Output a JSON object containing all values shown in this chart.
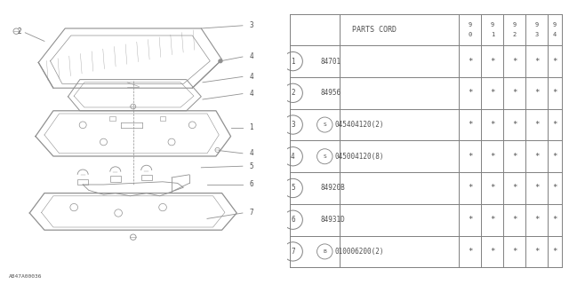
{
  "bg_color": "#ffffff",
  "diagram_label": "A847A00036",
  "table": {
    "rows": [
      {
        "num": "1",
        "code": "84701",
        "prefix": "",
        "stars": [
          "*",
          "*",
          "*",
          "*",
          "*"
        ]
      },
      {
        "num": "2",
        "code": "84956",
        "prefix": "",
        "stars": [
          "*",
          "*",
          "*",
          "*",
          "*"
        ]
      },
      {
        "num": "3",
        "code": "045404120(2)",
        "prefix": "S",
        "stars": [
          "*",
          "*",
          "*",
          "*",
          "*"
        ]
      },
      {
        "num": "4",
        "code": "045004120(8)",
        "prefix": "S",
        "stars": [
          "*",
          "*",
          "*",
          "*",
          "*"
        ]
      },
      {
        "num": "5",
        "code": "84920B",
        "prefix": "",
        "stars": [
          "*",
          "*",
          "*",
          "*",
          "*"
        ]
      },
      {
        "num": "6",
        "code": "84931D",
        "prefix": "",
        "stars": [
          "*",
          "*",
          "*",
          "*",
          "*"
        ]
      },
      {
        "num": "7",
        "code": "010006200(2)",
        "prefix": "B",
        "stars": [
          "*",
          "*",
          "*",
          "*",
          "*"
        ]
      }
    ]
  },
  "lc": "#909090",
  "tc": "#505050",
  "lw": 0.7
}
